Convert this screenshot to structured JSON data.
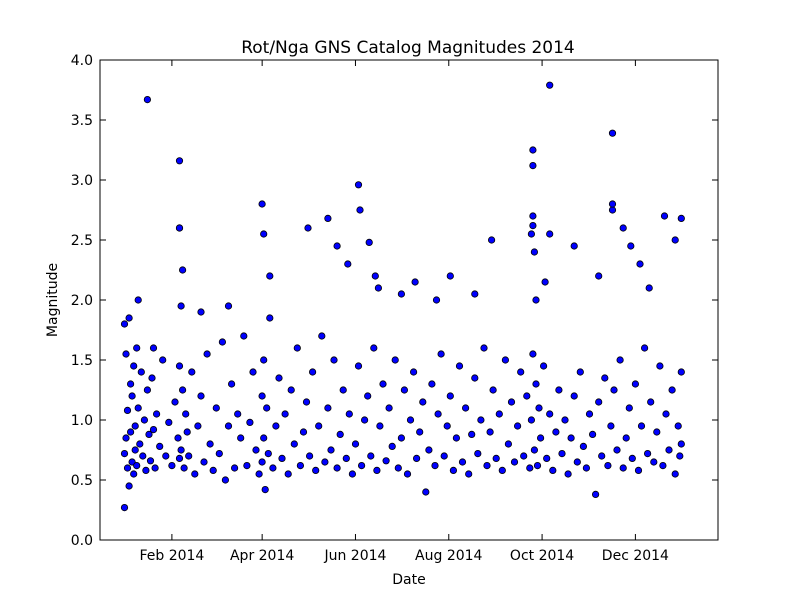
{
  "chart_data": {
    "type": "scatter",
    "title": "Rot/Nga GNS Catalog Magnitudes 2014",
    "xlabel": "Date",
    "ylabel": "Magnitude",
    "xlim": [
      "2013-12-16",
      "2015-01-24"
    ],
    "ylim": [
      0.0,
      4.0
    ],
    "x_ticks": [
      "2014-02-01",
      "2014-04-01",
      "2014-06-01",
      "2014-08-01",
      "2014-10-01",
      "2014-12-01"
    ],
    "x_tick_labels": [
      "Feb 2014",
      "Apr 2014",
      "Jun 2014",
      "Aug 2014",
      "Oct 2014",
      "Dec 2014"
    ],
    "y_ticks": [
      0.0,
      0.5,
      1.0,
      1.5,
      2.0,
      2.5,
      3.0,
      3.5,
      4.0
    ],
    "y_tick_labels": [
      "0.0",
      "0.5",
      "1.0",
      "1.5",
      "2.0",
      "2.5",
      "3.0",
      "3.5",
      "4.0"
    ],
    "grid": false,
    "marker_color": "#0000ff",
    "marker_edge": "#000000",
    "series": [
      {
        "x": [
          "2014-01-01",
          "2014-01-01",
          "2014-01-02",
          "2014-01-02",
          "2014-01-03",
          "2014-01-03",
          "2014-01-04",
          "2014-01-04",
          "2014-01-05",
          "2014-01-05",
          "2014-01-06",
          "2014-01-06",
          "2014-01-07",
          "2014-01-07",
          "2014-01-08",
          "2014-01-08",
          "2014-01-09",
          "2014-01-09",
          "2014-01-10",
          "2014-01-11",
          "2014-01-12",
          "2014-01-13",
          "2014-01-14",
          "2014-01-15",
          "2014-01-16",
          "2014-01-17",
          "2014-01-18",
          "2014-01-19",
          "2014-01-20",
          "2014-01-21",
          "2014-01-22",
          "2014-01-24",
          "2014-01-26",
          "2014-01-28",
          "2014-01-30",
          "2014-02-01",
          "2014-02-03",
          "2014-02-05",
          "2014-02-06",
          "2014-02-06",
          "2014-02-07",
          "2014-02-07",
          "2014-02-08",
          "2014-02-09",
          "2014-02-10",
          "2014-02-11",
          "2014-02-12",
          "2014-02-14",
          "2014-02-16",
          "2014-02-18",
          "2014-02-20",
          "2014-02-22",
          "2014-02-24",
          "2014-02-26",
          "2014-02-28",
          "2014-03-02",
          "2014-03-04",
          "2014-03-06",
          "2014-03-08",
          "2014-03-10",
          "2014-03-12",
          "2014-03-14",
          "2014-03-16",
          "2014-03-18",
          "2014-03-20",
          "2014-03-22",
          "2014-03-24",
          "2014-03-26",
          "2014-03-28",
          "2014-03-30",
          "2014-04-01",
          "2014-04-01",
          "2014-04-02",
          "2014-04-02",
          "2014-04-03",
          "2014-04-04",
          "2014-04-05",
          "2014-04-06",
          "2014-04-08",
          "2014-04-10",
          "2014-04-12",
          "2014-04-14",
          "2014-04-16",
          "2014-04-18",
          "2014-04-20",
          "2014-04-22",
          "2014-04-24",
          "2014-04-26",
          "2014-04-28",
          "2014-04-30",
          "2014-05-02",
          "2014-05-04",
          "2014-05-06",
          "2014-05-08",
          "2014-05-10",
          "2014-05-12",
          "2014-05-14",
          "2014-05-16",
          "2014-05-18",
          "2014-05-20",
          "2014-05-22",
          "2014-05-24",
          "2014-05-26",
          "2014-05-28",
          "2014-05-30",
          "2014-06-01",
          "2014-06-03",
          "2014-06-05",
          "2014-06-07",
          "2014-06-09",
          "2014-06-11",
          "2014-06-13",
          "2014-06-15",
          "2014-06-17",
          "2014-06-19",
          "2014-06-21",
          "2014-06-23",
          "2014-06-25",
          "2014-06-27",
          "2014-06-29",
          "2014-07-01",
          "2014-07-03",
          "2014-07-05",
          "2014-07-07",
          "2014-07-09",
          "2014-07-11",
          "2014-07-13",
          "2014-07-15",
          "2014-07-17",
          "2014-07-19",
          "2014-07-21",
          "2014-07-23",
          "2014-07-25",
          "2014-07-27",
          "2014-07-29",
          "2014-07-31",
          "2014-08-02",
          "2014-08-04",
          "2014-08-06",
          "2014-08-08",
          "2014-08-10",
          "2014-08-12",
          "2014-08-14",
          "2014-08-16",
          "2014-08-18",
          "2014-08-20",
          "2014-08-22",
          "2014-08-24",
          "2014-08-26",
          "2014-08-28",
          "2014-08-30",
          "2014-09-01",
          "2014-09-03",
          "2014-09-05",
          "2014-09-07",
          "2014-09-09",
          "2014-09-11",
          "2014-09-13",
          "2014-09-15",
          "2014-09-17",
          "2014-09-19",
          "2014-09-21",
          "2014-09-23",
          "2014-09-24",
          "2014-09-25",
          "2014-09-26",
          "2014-09-27",
          "2014-09-28",
          "2014-09-29",
          "2014-09-30",
          "2014-10-02",
          "2014-10-04",
          "2014-10-06",
          "2014-10-08",
          "2014-10-10",
          "2014-10-12",
          "2014-10-14",
          "2014-10-16",
          "2014-10-18",
          "2014-10-20",
          "2014-10-22",
          "2014-10-24",
          "2014-10-26",
          "2014-10-28",
          "2014-10-30",
          "2014-11-01",
          "2014-11-03",
          "2014-11-05",
          "2014-11-07",
          "2014-11-09",
          "2014-11-11",
          "2014-11-13",
          "2014-11-15",
          "2014-11-17",
          "2014-11-19",
          "2014-11-21",
          "2014-11-23",
          "2014-11-25",
          "2014-11-27",
          "2014-11-29",
          "2014-12-01",
          "2014-12-03",
          "2014-12-05",
          "2014-12-07",
          "2014-12-09",
          "2014-12-11",
          "2014-12-13",
          "2014-12-15",
          "2014-12-17",
          "2014-12-19",
          "2014-12-21",
          "2014-12-23",
          "2014-12-25",
          "2014-12-27",
          "2014-12-29",
          "2014-12-30",
          "2014-12-31",
          "2014-12-31",
          "2014-01-01",
          "2014-01-10",
          "2014-01-20",
          "2014-02-06",
          "2014-02-08",
          "2014-02-20",
          "2014-03-10",
          "2014-04-01",
          "2014-04-02",
          "2014-04-06",
          "2014-05-01",
          "2014-05-14",
          "2014-05-20",
          "2014-05-27",
          "2014-06-04",
          "2014-06-10",
          "2014-06-14",
          "2014-06-16",
          "2014-07-01",
          "2014-07-10",
          "2014-07-24",
          "2014-08-02",
          "2014-08-18",
          "2014-08-29",
          "2014-09-24",
          "2014-09-25",
          "2014-09-25",
          "2014-09-26",
          "2014-09-27",
          "2014-10-03",
          "2014-10-06",
          "2014-10-22",
          "2014-11-07",
          "2014-11-16",
          "2014-11-23",
          "2014-11-28",
          "2014-12-04",
          "2014-12-10",
          "2014-12-20",
          "2014-12-27",
          "2014-01-16",
          "2014-02-06",
          "2014-02-06",
          "2014-06-03",
          "2014-09-25",
          "2014-09-25",
          "2014-10-06",
          "2014-11-16",
          "2014-11-16",
          "2014-12-31"
        ],
        "y": [
          0.27,
          0.72,
          0.85,
          1.55,
          0.6,
          1.08,
          1.85,
          0.45,
          0.9,
          1.3,
          0.65,
          1.2,
          0.55,
          1.45,
          0.95,
          0.75,
          1.6,
          0.62,
          1.1,
          0.8,
          1.4,
          0.7,
          1.0,
          0.58,
          1.25,
          0.88,
          0.66,
          1.35,
          0.92,
          0.6,
          1.05,
          0.78,
          1.5,
          0.7,
          0.98,
          0.62,
          1.15,
          0.85,
          1.45,
          0.68,
          1.95,
          0.75,
          1.25,
          0.6,
          1.05,
          0.9,
          0.7,
          1.4,
          0.55,
          0.95,
          1.2,
          0.65,
          1.55,
          0.8,
          0.58,
          1.1,
          0.72,
          1.65,
          0.5,
          0.95,
          1.3,
          0.6,
          1.05,
          0.85,
          1.7,
          0.62,
          0.98,
          1.4,
          0.75,
          0.55,
          1.2,
          0.65,
          1.5,
          0.85,
          0.42,
          1.1,
          0.72,
          1.85,
          0.6,
          0.95,
          1.35,
          0.68,
          1.05,
          0.55,
          1.25,
          0.8,
          1.6,
          0.62,
          0.9,
          1.15,
          0.7,
          1.4,
          0.58,
          0.95,
          1.7,
          0.65,
          1.1,
          0.75,
          1.5,
          0.6,
          0.88,
          1.25,
          0.68,
          1.05,
          0.55,
          0.8,
          1.45,
          0.62,
          1.0,
          1.2,
          0.7,
          1.6,
          0.58,
          0.95,
          1.3,
          0.66,
          1.1,
          0.78,
          1.5,
          0.6,
          0.85,
          1.25,
          0.55,
          1.0,
          1.4,
          0.68,
          0.9,
          1.15,
          0.4,
          0.75,
          1.3,
          0.62,
          1.05,
          1.55,
          0.7,
          0.95,
          1.2,
          0.58,
          0.85,
          1.45,
          0.65,
          1.1,
          0.55,
          0.88,
          1.35,
          0.72,
          1.0,
          1.6,
          0.62,
          0.9,
          1.25,
          0.68,
          1.05,
          0.58,
          1.5,
          0.8,
          1.15,
          0.65,
          0.95,
          1.4,
          0.7,
          1.2,
          0.6,
          1.0,
          1.55,
          0.75,
          1.3,
          0.62,
          1.1,
          0.85,
          1.45,
          0.68,
          1.05,
          0.58,
          0.9,
          1.25,
          0.72,
          1.0,
          0.55,
          0.85,
          1.2,
          0.65,
          1.4,
          0.78,
          0.6,
          1.05,
          0.88,
          0.38,
          1.15,
          0.7,
          1.35,
          0.62,
          0.95,
          1.25,
          0.75,
          1.5,
          0.6,
          0.85,
          1.1,
          0.68,
          1.3,
          0.58,
          0.95,
          1.6,
          0.72,
          1.15,
          0.65,
          0.9,
          1.45,
          0.62,
          1.05,
          0.75,
          1.25,
          0.55,
          0.95,
          0.7,
          1.4,
          0.8,
          1.8,
          2.0,
          1.6,
          2.6,
          2.25,
          1.9,
          1.95,
          2.8,
          2.55,
          2.2,
          2.6,
          2.68,
          2.45,
          2.3,
          2.75,
          2.48,
          2.2,
          2.1,
          2.05,
          2.15,
          2.0,
          2.2,
          2.05,
          2.5,
          2.55,
          2.62,
          2.7,
          2.4,
          2.0,
          2.15,
          2.55,
          2.45,
          2.2,
          2.75,
          2.6,
          2.45,
          2.3,
          2.1,
          2.7,
          2.5,
          3.67,
          3.16,
          2.6,
          2.96,
          3.25,
          3.12,
          3.79,
          3.39,
          2.8,
          2.68
        ]
      }
    ]
  }
}
